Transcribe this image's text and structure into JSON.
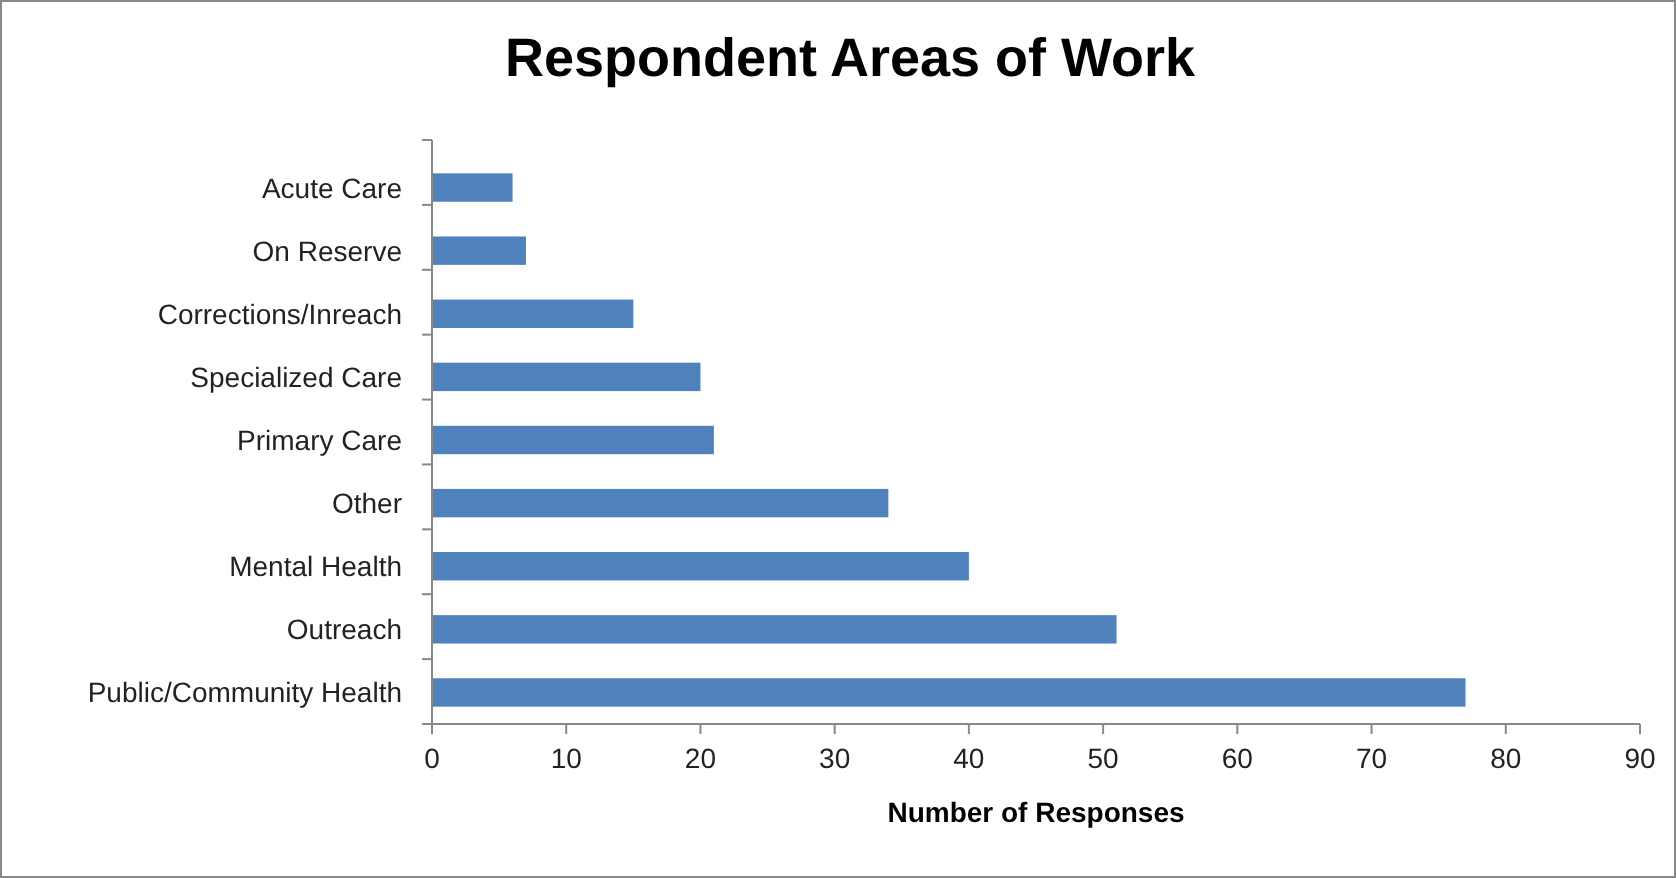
{
  "chart_data": {
    "type": "bar",
    "orientation": "horizontal",
    "title": "Respondent Areas of Work",
    "xlabel": "Number of Responses",
    "categories": [
      "Acute Care",
      "On Reserve",
      "Corrections/Inreach",
      "Specialized Care",
      "Primary Care",
      "Other",
      "Mental Health",
      "Outreach ",
      "Public/Community Health"
    ],
    "values": [
      6,
      7,
      15,
      20,
      21,
      34,
      40,
      51,
      77
    ],
    "color": "#4f81bd",
    "xlim": [
      0,
      90
    ],
    "xticks": [
      0,
      10,
      20,
      30,
      40,
      50,
      60,
      70,
      80,
      90
    ],
    "grid": false
  }
}
